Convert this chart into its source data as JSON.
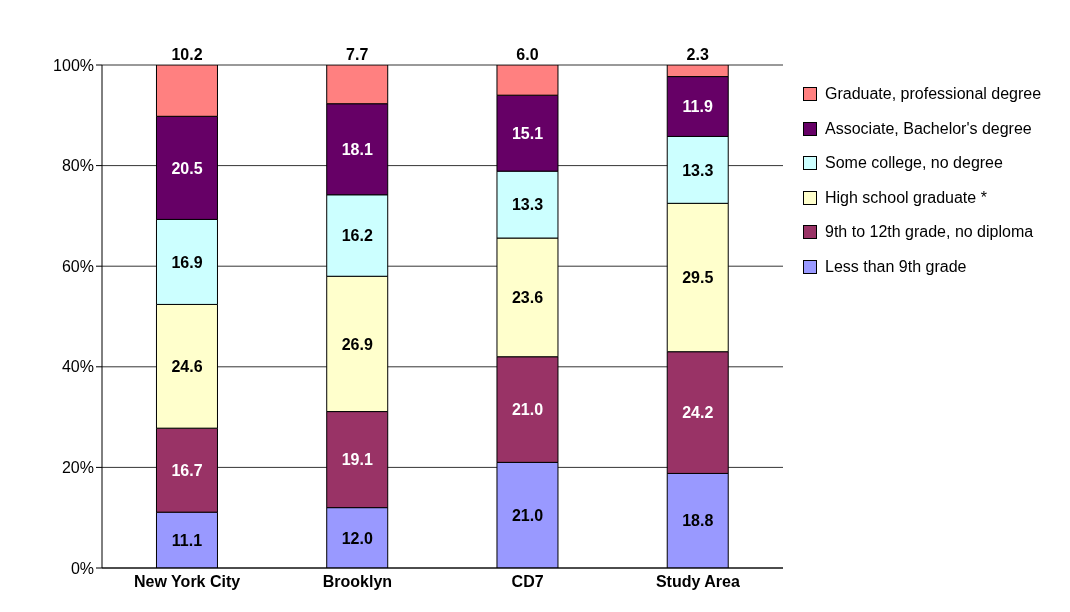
{
  "chart_data": {
    "type": "bar",
    "stacked": true,
    "categories": [
      "New York City",
      "Brooklyn",
      "CD7",
      "Study Area"
    ],
    "series": [
      {
        "name": "Less than 9th grade",
        "color": "#9999ff",
        "values": [
          11.1,
          12.0,
          21.0,
          18.8
        ],
        "value_labels": [
          "11.1",
          "12.0",
          "21.0",
          "18.8"
        ]
      },
      {
        "name": "9th to 12th grade, no diploma",
        "color": "#993366",
        "values": [
          16.7,
          19.1,
          21.0,
          24.2
        ],
        "value_labels": [
          "16.7",
          "19.1",
          "21.0",
          "24.2"
        ]
      },
      {
        "name": "High school graduate *",
        "color": "#ffffcc",
        "values": [
          24.6,
          26.9,
          23.6,
          29.5
        ],
        "value_labels": [
          "24.6",
          "26.9",
          "23.6",
          "29.5"
        ]
      },
      {
        "name": "Some college, no degree",
        "color": "#ccffff",
        "values": [
          16.9,
          16.2,
          13.3,
          13.3
        ],
        "value_labels": [
          "16.9",
          "16.2",
          "13.3",
          "13.3"
        ]
      },
      {
        "name": "Associate, Bachelor's degree",
        "color": "#660066",
        "values": [
          20.5,
          18.1,
          15.1,
          11.9
        ],
        "value_labels": [
          "20.5",
          "18.1",
          "15.1",
          "11.9"
        ]
      },
      {
        "name": "Graduate, professional degree",
        "color": "#ff8080",
        "values": [
          10.2,
          7.7,
          6.0,
          2.3
        ],
        "value_labels": [
          "10.2",
          "7.7",
          "6.0",
          "2.3"
        ]
      }
    ],
    "ylim": [
      0,
      100
    ],
    "yticks": [
      {
        "value": 0,
        "label": "0%"
      },
      {
        "value": 20,
        "label": "20%"
      },
      {
        "value": 40,
        "label": "40%"
      },
      {
        "value": 60,
        "label": "60%"
      },
      {
        "value": 80,
        "label": "80%"
      },
      {
        "value": 100,
        "label": "100%"
      }
    ],
    "grid": "y",
    "legend": "right"
  }
}
